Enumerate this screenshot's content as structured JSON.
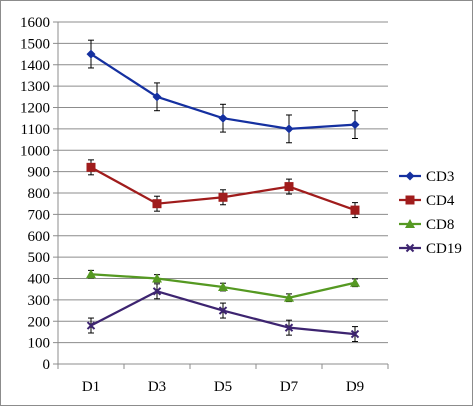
{
  "chart_data": {
    "type": "line",
    "title": "",
    "xlabel": "",
    "ylabel": "",
    "categories": [
      "D1",
      "D3",
      "D5",
      "D7",
      "D9"
    ],
    "ylim": [
      0,
      1600
    ],
    "yticks": [
      0,
      100,
      200,
      300,
      400,
      500,
      600,
      700,
      800,
      900,
      1000,
      1100,
      1200,
      1300,
      1400,
      1500,
      1600
    ],
    "grid": "horizontal",
    "legend_position": "right",
    "series": [
      {
        "name": "CD3",
        "color": "#1530a0",
        "marker": "diamond",
        "values": [
          1450,
          1250,
          1150,
          1100,
          1120
        ],
        "errors": [
          65,
          65,
          65,
          65,
          65
        ]
      },
      {
        "name": "CD4",
        "color": "#a01c1c",
        "marker": "square",
        "values": [
          920,
          750,
          780,
          830,
          720
        ],
        "errors": [
          35,
          35,
          35,
          35,
          35
        ]
      },
      {
        "name": "CD8",
        "color": "#559922",
        "marker": "triangle",
        "values": [
          420,
          400,
          360,
          310,
          380
        ],
        "errors": [
          18,
          18,
          18,
          18,
          18
        ]
      },
      {
        "name": "CD19",
        "color": "#3d2470",
        "marker": "x",
        "values": [
          180,
          340,
          250,
          170,
          140
        ],
        "errors": [
          35,
          35,
          35,
          35,
          35
        ]
      }
    ]
  }
}
